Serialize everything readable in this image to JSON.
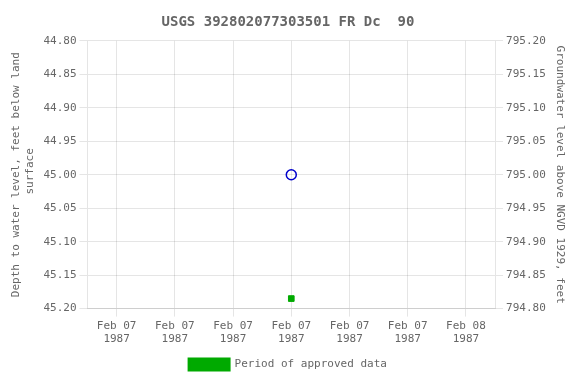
{
  "chart_data": {
    "type": "scatter",
    "title": "USGS 392802077303501 FR Dc  90",
    "y_label": "Depth to water level, feet below land\n surface",
    "y2_label": "Groundwater level above NGVD 1929, feet",
    "categories": [
      "Feb 07\n1987",
      "Feb 07\n1987",
      "Feb 07\n1987",
      "Feb 07\n1987",
      "Feb 07\n1987",
      "Feb 07\n1987",
      "Feb 08\n1987"
    ],
    "series": [
      {
        "color": "#0000cc",
        "marker": "open circle",
        "values": [
          null,
          null,
          null,
          45.0,
          null,
          null,
          null
        ]
      },
      {
        "name": "Period of approved data",
        "color": "#00aa00",
        "marker": "square",
        "values": [
          null,
          null,
          null,
          45.185,
          null,
          null,
          null
        ]
      }
    ],
    "ylim": [
      45.2,
      44.8
    ],
    "yticks": [
      {
        "value": 44.8,
        "label": "44.80"
      },
      {
        "value": 44.85,
        "label": "44.85"
      },
      {
        "value": 44.9,
        "label": "44.90"
      },
      {
        "value": 44.95,
        "label": "44.95"
      },
      {
        "value": 45.0,
        "label": "45.00"
      },
      {
        "value": 45.05,
        "label": "45.05"
      },
      {
        "value": 45.1,
        "label": "45.10"
      },
      {
        "value": 45.15,
        "label": "45.15"
      },
      {
        "value": 45.2,
        "label": "45.20"
      }
    ],
    "y2lim": [
      794.8,
      795.2
    ],
    "y2ticks": [
      {
        "value": 794.8,
        "label": "794.80"
      },
      {
        "value": 794.85,
        "label": "794.85"
      },
      {
        "value": 794.9,
        "label": "794.90"
      },
      {
        "value": 794.95,
        "label": "794.95"
      },
      {
        "value": 795.0,
        "label": "795.00"
      },
      {
        "value": 795.05,
        "label": "795.05"
      },
      {
        "value": 795.1,
        "label": "795.10"
      },
      {
        "value": 795.15,
        "label": "795.15"
      },
      {
        "value": 795.2,
        "label": "795.20"
      }
    ],
    "grid": true,
    "legend": "bottom"
  }
}
